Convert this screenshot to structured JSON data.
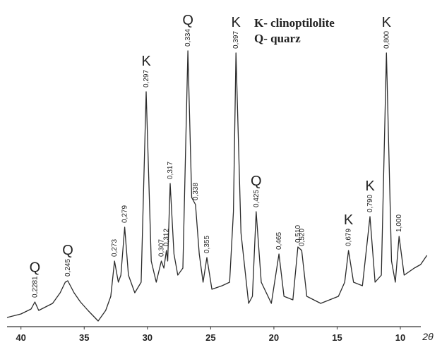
{
  "chart_data": {
    "type": "line",
    "color": "#2b2b2b",
    "x": [
      41.1,
      40.0,
      39.2,
      38.9,
      38.6,
      37.5,
      36.9,
      36.5,
      36.3,
      35.8,
      35.3,
      34.7,
      33.9,
      33.3,
      32.9,
      32.6,
      32.3,
      32.1,
      31.8,
      31.5,
      31.0,
      30.5,
      30.1,
      29.7,
      29.3,
      28.9,
      28.7,
      28.5,
      28.4,
      28.2,
      27.9,
      27.6,
      27.2,
      26.8,
      26.5,
      26.2,
      25.9,
      25.6,
      25.3,
      24.9,
      24.1,
      23.5,
      23.2,
      23.0,
      22.6,
      22.0,
      21.7,
      21.4,
      21.0,
      20.2,
      19.6,
      19.2,
      18.5,
      18.1,
      17.8,
      17.4,
      16.3,
      14.9,
      14.4,
      14.1,
      13.7,
      13.0,
      12.4,
      12.0,
      11.5,
      11.1,
      10.7,
      10.4,
      10.1,
      9.7,
      8.9,
      8.4,
      7.9
    ],
    "values": [
      10,
      15,
      22,
      32,
      20,
      30,
      45,
      60,
      62,
      45,
      32,
      20,
      5,
      20,
      40,
      90,
      60,
      70,
      138,
      70,
      45,
      60,
      330,
      90,
      60,
      90,
      80,
      105,
      90,
      200,
      100,
      70,
      80,
      388,
      180,
      170,
      100,
      60,
      95,
      50,
      55,
      60,
      160,
      385,
      130,
      30,
      40,
      160,
      60,
      30,
      100,
      40,
      35,
      110,
      105,
      40,
      30,
      40,
      60,
      105,
      60,
      55,
      153,
      60,
      70,
      385,
      90,
      60,
      125,
      70,
      80,
      85,
      98
    ],
    "xlim": [
      41.1,
      7.6
    ],
    "ylim": [
      0,
      400
    ],
    "xticks": [
      40,
      35,
      30,
      25,
      20,
      15,
      10
    ],
    "xlabel": "2θ",
    "key": [
      "K- clinoptilolite",
      "Q- quarz"
    ],
    "annotations": [
      {
        "x": 38.9,
        "label": "0,2281",
        "phase": "Q"
      },
      {
        "x": 36.3,
        "label": "0,245",
        "phase": "Q"
      },
      {
        "x": 32.6,
        "label": "0,273"
      },
      {
        "x": 31.8,
        "label": "0,279"
      },
      {
        "x": 30.1,
        "label": "0,297",
        "phase": "K"
      },
      {
        "x": 28.9,
        "label": "0,307"
      },
      {
        "x": 28.5,
        "label": "0,312"
      },
      {
        "x": 28.2,
        "label": "0,317"
      },
      {
        "x": 26.8,
        "label": "0,334",
        "phase": "Q"
      },
      {
        "x": 26.2,
        "label": "0,338"
      },
      {
        "x": 25.3,
        "label": "0,355"
      },
      {
        "x": 23.0,
        "label": "0,397",
        "phase": "K"
      },
      {
        "x": 21.4,
        "label": "0,425",
        "phase": "Q"
      },
      {
        "x": 19.6,
        "label": "0,465"
      },
      {
        "x": 18.1,
        "label": "0,510"
      },
      {
        "x": 17.8,
        "label": "0,520"
      },
      {
        "x": 14.1,
        "label": "0,679",
        "phase": "K"
      },
      {
        "x": 12.4,
        "label": "0,790",
        "phase": "K"
      },
      {
        "x": 11.1,
        "label": "0,800",
        "phase": "K"
      },
      {
        "x": 10.1,
        "label": "1,000"
      }
    ]
  }
}
